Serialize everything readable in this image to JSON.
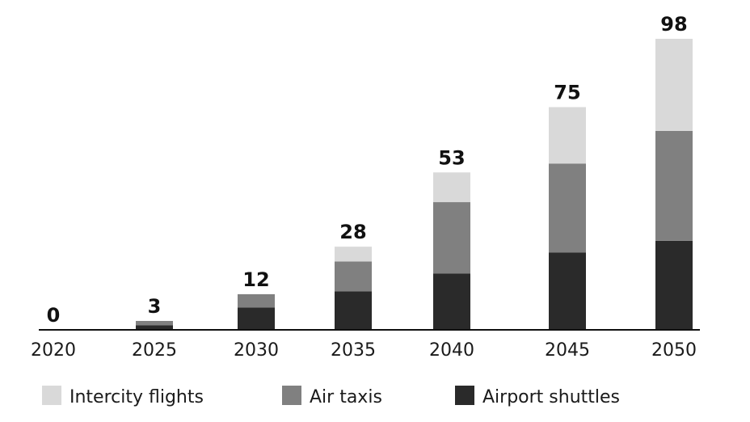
{
  "chart_data": {
    "type": "bar",
    "stacked": true,
    "title": "",
    "xlabel": "",
    "ylabel": "",
    "ylim": [
      0,
      98
    ],
    "grid": false,
    "legend": "bottom",
    "categories": [
      "2020",
      "2025",
      "2030",
      "2035",
      "2040",
      "2045",
      "2050"
    ],
    "series": [
      {
        "name": "Airport shuttles",
        "color": "#2a2a2a",
        "values": [
          0,
          1.5,
          7.5,
          13,
          19,
          26,
          30
        ]
      },
      {
        "name": "Air taxis",
        "color": "#808080",
        "values": [
          0,
          1.5,
          4.5,
          10,
          24,
          30,
          37
        ]
      },
      {
        "name": "Intercity flights",
        "color": "#d9d9d9",
        "values": [
          0,
          0,
          0,
          5,
          10,
          19,
          31
        ]
      }
    ],
    "totals": [
      0,
      3,
      12,
      28,
      53,
      75,
      98
    ],
    "legend_order": [
      "Intercity flights",
      "Air taxis",
      "Airport shuttles"
    ]
  }
}
